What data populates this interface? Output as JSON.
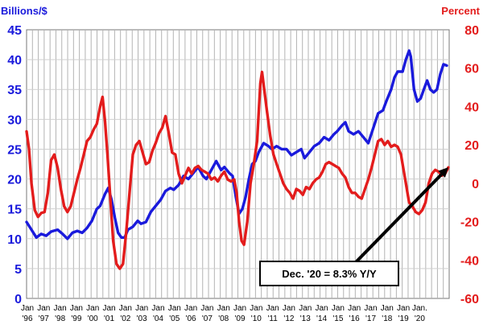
{
  "chart_data": {
    "type": "line",
    "ylabel_left": "Billions/$",
    "ylabel_right": "Percent",
    "ylim_left": [
      0,
      45
    ],
    "ylim_right": [
      -60,
      80
    ],
    "yticks_left": [
      "0",
      "5",
      "10",
      "15",
      "20",
      "25",
      "30",
      "35",
      "40",
      "45"
    ],
    "yticks_right": [
      "-60",
      "-40",
      "-20",
      "0",
      "20",
      "40",
      "60",
      "80"
    ],
    "x_ticks": [
      {
        "top": "Jan",
        "bottom": "'96"
      },
      {
        "top": "Jan",
        "bottom": "'97"
      },
      {
        "top": "Jan",
        "bottom": "'98"
      },
      {
        "top": "Jan",
        "bottom": "'99"
      },
      {
        "top": "Jan",
        "bottom": "'00"
      },
      {
        "top": "Jan",
        "bottom": "'01"
      },
      {
        "top": "Jan",
        "bottom": "'02"
      },
      {
        "top": "Jan",
        "bottom": "'03"
      },
      {
        "top": "Jan",
        "bottom": "'04"
      },
      {
        "top": "Jan",
        "bottom": "'05"
      },
      {
        "top": "Jan",
        "bottom": "'06"
      },
      {
        "top": "Jan",
        "bottom": "'07"
      },
      {
        "top": "Jan",
        "bottom": "'08"
      },
      {
        "top": "Jan",
        "bottom": "'09"
      },
      {
        "top": "Jan",
        "bottom": "'10"
      },
      {
        "top": "Jan",
        "bottom": "'11"
      },
      {
        "top": "Jan",
        "bottom": "'12"
      },
      {
        "top": "Jan",
        "bottom": "'13"
      },
      {
        "top": "Jan",
        "bottom": "'14"
      },
      {
        "top": "Jan",
        "bottom": "'15"
      },
      {
        "top": "Jan",
        "bottom": "'16"
      },
      {
        "top": "Jan",
        "bottom": "'17"
      },
      {
        "top": "Jan",
        "bottom": "'18"
      },
      {
        "top": "Jan",
        "bottom": "'19"
      },
      {
        "top": "Jan.",
        "bottom": "'20"
      }
    ],
    "grid": true,
    "series": [
      {
        "axis": "left",
        "color": "#1a1adc",
        "points": [
          [
            1996.0,
            12.8
          ],
          [
            1996.3,
            11.5
          ],
          [
            1996.6,
            10.2
          ],
          [
            1996.9,
            10.8
          ],
          [
            1997.2,
            10.5
          ],
          [
            1997.5,
            11.2
          ],
          [
            1997.9,
            11.5
          ],
          [
            1998.2,
            10.8
          ],
          [
            1998.5,
            10.0
          ],
          [
            1998.8,
            11.0
          ],
          [
            1999.1,
            11.3
          ],
          [
            1999.4,
            11.0
          ],
          [
            1999.7,
            11.8
          ],
          [
            2000.0,
            13.0
          ],
          [
            2000.3,
            15.0
          ],
          [
            2000.5,
            15.5
          ],
          [
            2000.8,
            17.5
          ],
          [
            2001.0,
            18.5
          ],
          [
            2001.2,
            16.5
          ],
          [
            2001.4,
            13.5
          ],
          [
            2001.6,
            11.0
          ],
          [
            2001.8,
            10.2
          ],
          [
            2002.0,
            10.2
          ],
          [
            2002.2,
            11.5
          ],
          [
            2002.5,
            12.0
          ],
          [
            2002.8,
            13.0
          ],
          [
            2003.0,
            12.5
          ],
          [
            2003.3,
            12.8
          ],
          [
            2003.6,
            14.5
          ],
          [
            2003.9,
            15.5
          ],
          [
            2004.2,
            16.5
          ],
          [
            2004.5,
            18.0
          ],
          [
            2004.8,
            18.5
          ],
          [
            2005.0,
            18.2
          ],
          [
            2005.3,
            19.0
          ],
          [
            2005.6,
            20.5
          ],
          [
            2005.9,
            20.0
          ],
          [
            2006.2,
            21.0
          ],
          [
            2006.5,
            22.0
          ],
          [
            2006.8,
            20.5
          ],
          [
            2007.0,
            20.0
          ],
          [
            2007.3,
            21.5
          ],
          [
            2007.6,
            23.0
          ],
          [
            2007.9,
            21.5
          ],
          [
            2008.1,
            22.0
          ],
          [
            2008.4,
            21.0
          ],
          [
            2008.6,
            20.5
          ],
          [
            2008.8,
            17.0
          ],
          [
            2009.0,
            14.2
          ],
          [
            2009.2,
            15.0
          ],
          [
            2009.4,
            17.0
          ],
          [
            2009.6,
            20.0
          ],
          [
            2009.8,
            22.5
          ],
          [
            2010.0,
            23.0
          ],
          [
            2010.2,
            24.5
          ],
          [
            2010.5,
            26.0
          ],
          [
            2010.8,
            25.5
          ],
          [
            2011.0,
            25.0
          ],
          [
            2011.3,
            25.5
          ],
          [
            2011.6,
            25.0
          ],
          [
            2011.9,
            25.0
          ],
          [
            2012.2,
            24.0
          ],
          [
            2012.5,
            24.5
          ],
          [
            2012.8,
            25.0
          ],
          [
            2013.0,
            23.5
          ],
          [
            2013.3,
            24.5
          ],
          [
            2013.6,
            25.5
          ],
          [
            2013.9,
            26.0
          ],
          [
            2014.2,
            27.0
          ],
          [
            2014.5,
            26.5
          ],
          [
            2014.8,
            27.5
          ],
          [
            2015.0,
            28.0
          ],
          [
            2015.3,
            29.0
          ],
          [
            2015.5,
            29.5
          ],
          [
            2015.7,
            28.0
          ],
          [
            2016.0,
            27.5
          ],
          [
            2016.3,
            28.0
          ],
          [
            2016.6,
            27.0
          ],
          [
            2016.9,
            26.0
          ],
          [
            2017.2,
            28.5
          ],
          [
            2017.5,
            31.0
          ],
          [
            2017.8,
            31.5
          ],
          [
            2018.0,
            33.0
          ],
          [
            2018.3,
            35.0
          ],
          [
            2018.5,
            37.0
          ],
          [
            2018.7,
            38.0
          ],
          [
            2019.0,
            38.0
          ],
          [
            2019.2,
            40.0
          ],
          [
            2019.4,
            41.5
          ],
          [
            2019.5,
            40.5
          ],
          [
            2019.7,
            35.0
          ],
          [
            2019.9,
            33.0
          ],
          [
            2020.1,
            33.5
          ],
          [
            2020.3,
            35.0
          ],
          [
            2020.5,
            36.5
          ],
          [
            2020.7,
            35.0
          ],
          [
            2020.9,
            34.5
          ],
          [
            2021.1,
            35.0
          ],
          [
            2021.3,
            37.5
          ],
          [
            2021.5,
            39.2
          ],
          [
            2021.7,
            39.0
          ]
        ]
      },
      {
        "axis": "right",
        "color": "#e31c1c",
        "points": [
          [
            1996.0,
            27.0
          ],
          [
            1996.15,
            18.0
          ],
          [
            1996.3,
            0.0
          ],
          [
            1996.5,
            -14.0
          ],
          [
            1996.7,
            -17.5
          ],
          [
            1996.9,
            -15.5
          ],
          [
            1997.1,
            -15.0
          ],
          [
            1997.3,
            -5.0
          ],
          [
            1997.5,
            12.0
          ],
          [
            1997.7,
            15.0
          ],
          [
            1997.9,
            8.0
          ],
          [
            1998.1,
            -3.0
          ],
          [
            1998.3,
            -12.0
          ],
          [
            1998.5,
            -15.0
          ],
          [
            1998.7,
            -12.0
          ],
          [
            1998.9,
            -5.0
          ],
          [
            1999.1,
            2.0
          ],
          [
            1999.3,
            8.0
          ],
          [
            1999.5,
            15.0
          ],
          [
            1999.7,
            22.0
          ],
          [
            1999.9,
            24.0
          ],
          [
            2000.1,
            28.0
          ],
          [
            2000.3,
            31.0
          ],
          [
            2000.5,
            40.0
          ],
          [
            2000.65,
            45.0
          ],
          [
            2000.8,
            32.0
          ],
          [
            2000.95,
            15.0
          ],
          [
            2001.1,
            -5.0
          ],
          [
            2001.3,
            -30.0
          ],
          [
            2001.5,
            -42.0
          ],
          [
            2001.7,
            -44.5
          ],
          [
            2001.9,
            -42.0
          ],
          [
            2002.1,
            -25.0
          ],
          [
            2002.3,
            -5.0
          ],
          [
            2002.5,
            15.0
          ],
          [
            2002.7,
            20.0
          ],
          [
            2002.9,
            22.0
          ],
          [
            2003.1,
            16.0
          ],
          [
            2003.3,
            10.0
          ],
          [
            2003.5,
            11.0
          ],
          [
            2003.7,
            17.0
          ],
          [
            2003.9,
            21.0
          ],
          [
            2004.1,
            26.0
          ],
          [
            2004.3,
            29.0
          ],
          [
            2004.5,
            35.0
          ],
          [
            2004.7,
            26.0
          ],
          [
            2004.9,
            16.0
          ],
          [
            2005.1,
            15.0
          ],
          [
            2005.3,
            5.0
          ],
          [
            2005.5,
            0.0
          ],
          [
            2005.7,
            4.0
          ],
          [
            2005.9,
            8.0
          ],
          [
            2006.1,
            5.0
          ],
          [
            2006.3,
            8.0
          ],
          [
            2006.5,
            9.0
          ],
          [
            2006.7,
            7.0
          ],
          [
            2006.9,
            6.0
          ],
          [
            2007.1,
            5.0
          ],
          [
            2007.3,
            2.0
          ],
          [
            2007.5,
            3.0
          ],
          [
            2007.7,
            1.0
          ],
          [
            2007.9,
            4.0
          ],
          [
            2008.1,
            6.0
          ],
          [
            2008.3,
            2.0
          ],
          [
            2008.5,
            1.0
          ],
          [
            2008.7,
            2.0
          ],
          [
            2008.85,
            -5.0
          ],
          [
            2009.0,
            -20.0
          ],
          [
            2009.15,
            -30.0
          ],
          [
            2009.3,
            -32.0
          ],
          [
            2009.5,
            -20.0
          ],
          [
            2009.7,
            0.0
          ],
          [
            2009.9,
            10.0
          ],
          [
            2010.1,
            22.0
          ],
          [
            2010.3,
            52.0
          ],
          [
            2010.4,
            58.0
          ],
          [
            2010.55,
            48.0
          ],
          [
            2010.7,
            38.0
          ],
          [
            2010.9,
            25.0
          ],
          [
            2011.1,
            15.0
          ],
          [
            2011.3,
            10.0
          ],
          [
            2011.5,
            5.0
          ],
          [
            2011.7,
            0.0
          ],
          [
            2011.9,
            -3.0
          ],
          [
            2012.1,
            -5.0
          ],
          [
            2012.3,
            -8.0
          ],
          [
            2012.5,
            -3.0
          ],
          [
            2012.7,
            -4.0
          ],
          [
            2012.9,
            -6.0
          ],
          [
            2013.1,
            -2.0
          ],
          [
            2013.3,
            -3.0
          ],
          [
            2013.5,
            0.0
          ],
          [
            2013.7,
            2.0
          ],
          [
            2013.9,
            3.0
          ],
          [
            2014.1,
            6.0
          ],
          [
            2014.3,
            10.0
          ],
          [
            2014.5,
            11.0
          ],
          [
            2014.7,
            10.0
          ],
          [
            2014.9,
            9.0
          ],
          [
            2015.1,
            8.0
          ],
          [
            2015.3,
            5.0
          ],
          [
            2015.5,
            3.0
          ],
          [
            2015.7,
            -2.0
          ],
          [
            2015.9,
            -5.0
          ],
          [
            2016.1,
            -5.0
          ],
          [
            2016.3,
            -7.0
          ],
          [
            2016.5,
            -8.0
          ],
          [
            2016.7,
            -3.0
          ],
          [
            2016.9,
            2.0
          ],
          [
            2017.1,
            8.0
          ],
          [
            2017.3,
            15.0
          ],
          [
            2017.5,
            22.0
          ],
          [
            2017.7,
            23.0
          ],
          [
            2017.9,
            20.0
          ],
          [
            2018.1,
            22.0
          ],
          [
            2018.3,
            19.0
          ],
          [
            2018.5,
            20.0
          ],
          [
            2018.7,
            19.0
          ],
          [
            2018.9,
            15.0
          ],
          [
            2019.0,
            10.0
          ],
          [
            2019.2,
            0.0
          ],
          [
            2019.4,
            -10.0
          ],
          [
            2019.6,
            -12.0
          ],
          [
            2019.8,
            -15.0
          ],
          [
            2020.0,
            -16.0
          ],
          [
            2020.2,
            -14.0
          ],
          [
            2020.4,
            -10.0
          ],
          [
            2020.6,
            0.0
          ],
          [
            2020.8,
            5.0
          ],
          [
            2021.0,
            7.0
          ],
          [
            2021.2,
            6.0
          ],
          [
            2021.4,
            4.0
          ],
          [
            2021.6,
            5.0
          ],
          [
            2021.8,
            8.3
          ]
        ]
      }
    ],
    "annotations": [
      {
        "text": "Dec. '20 = 8.3% Y/Y",
        "arrow_to": [
          2021.8,
          8.3
        ],
        "axis": "right",
        "arrow_color": "#000000"
      }
    ]
  }
}
